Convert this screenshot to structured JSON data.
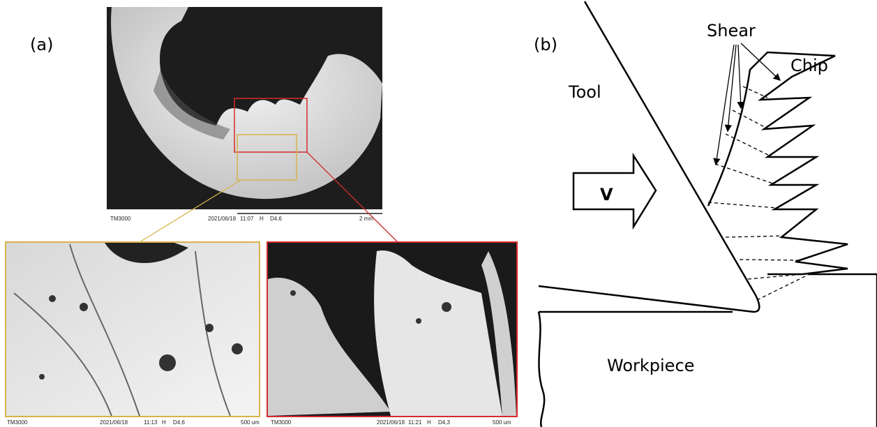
{
  "panel_a": {
    "label": "(a)",
    "images": [
      {
        "instrument": "TM3000",
        "date": "2021/06/18",
        "time": "11:07",
        "mode": "H",
        "setting": "D4,6",
        "scale": "2 mm"
      },
      {
        "instrument": "TM3000",
        "date": "2021/06/18",
        "time": "11:13",
        "mode": "H",
        "setting": "D4,6",
        "scale": "500 um"
      },
      {
        "instrument": "TM3000",
        "date": "2021/06/18",
        "time": "11:21",
        "mode": "H",
        "setting": "D4,3",
        "scale": "500 um"
      }
    ]
  },
  "panel_b": {
    "label": "(b)",
    "shear": "Shear",
    "chip": "Chip",
    "tool": "Tool",
    "velocity": "V",
    "workpiece": "Workpiece"
  }
}
